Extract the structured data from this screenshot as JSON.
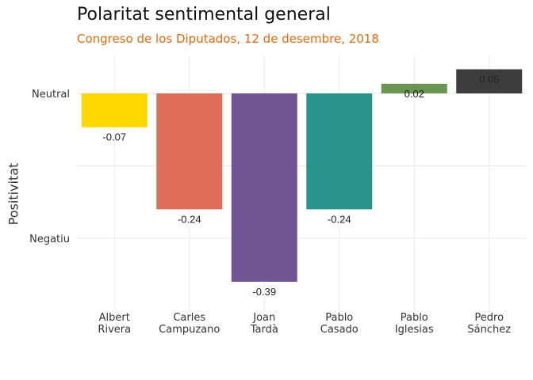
{
  "chart_data": {
    "type": "bar",
    "title": "Polaritat sentimental general",
    "subtitle": "Congreso de los Diputados, 12 de desembre, 2018",
    "ylabel": "Positivitat",
    "xlabel": "",
    "categories": [
      [
        "Albert",
        "Rivera"
      ],
      [
        "Carles",
        "Campuzano"
      ],
      [
        "Joan",
        "Tardà"
      ],
      [
        "Pablo",
        "Casado"
      ],
      [
        "Pablo",
        "Iglesias"
      ],
      [
        "Pedro",
        "Sánchez"
      ]
    ],
    "values": [
      -0.07,
      -0.24,
      -0.39,
      -0.24,
      0.02,
      0.05
    ],
    "value_labels": [
      "-0.07",
      "-0.24",
      "-0.39",
      "-0.24",
      "0.02",
      "0.05"
    ],
    "colors": [
      "#ffd700",
      "#dd6f5a",
      "#6f5594",
      "#29948c",
      "#6b9553",
      "#3d3d3d"
    ],
    "y_ticks": [
      {
        "value": 0,
        "label": "Neutral"
      },
      {
        "value": -0.3,
        "label": "Negatiu"
      }
    ],
    "ylim": [
      -0.42,
      0.08
    ],
    "grid": true,
    "legend": "none"
  }
}
